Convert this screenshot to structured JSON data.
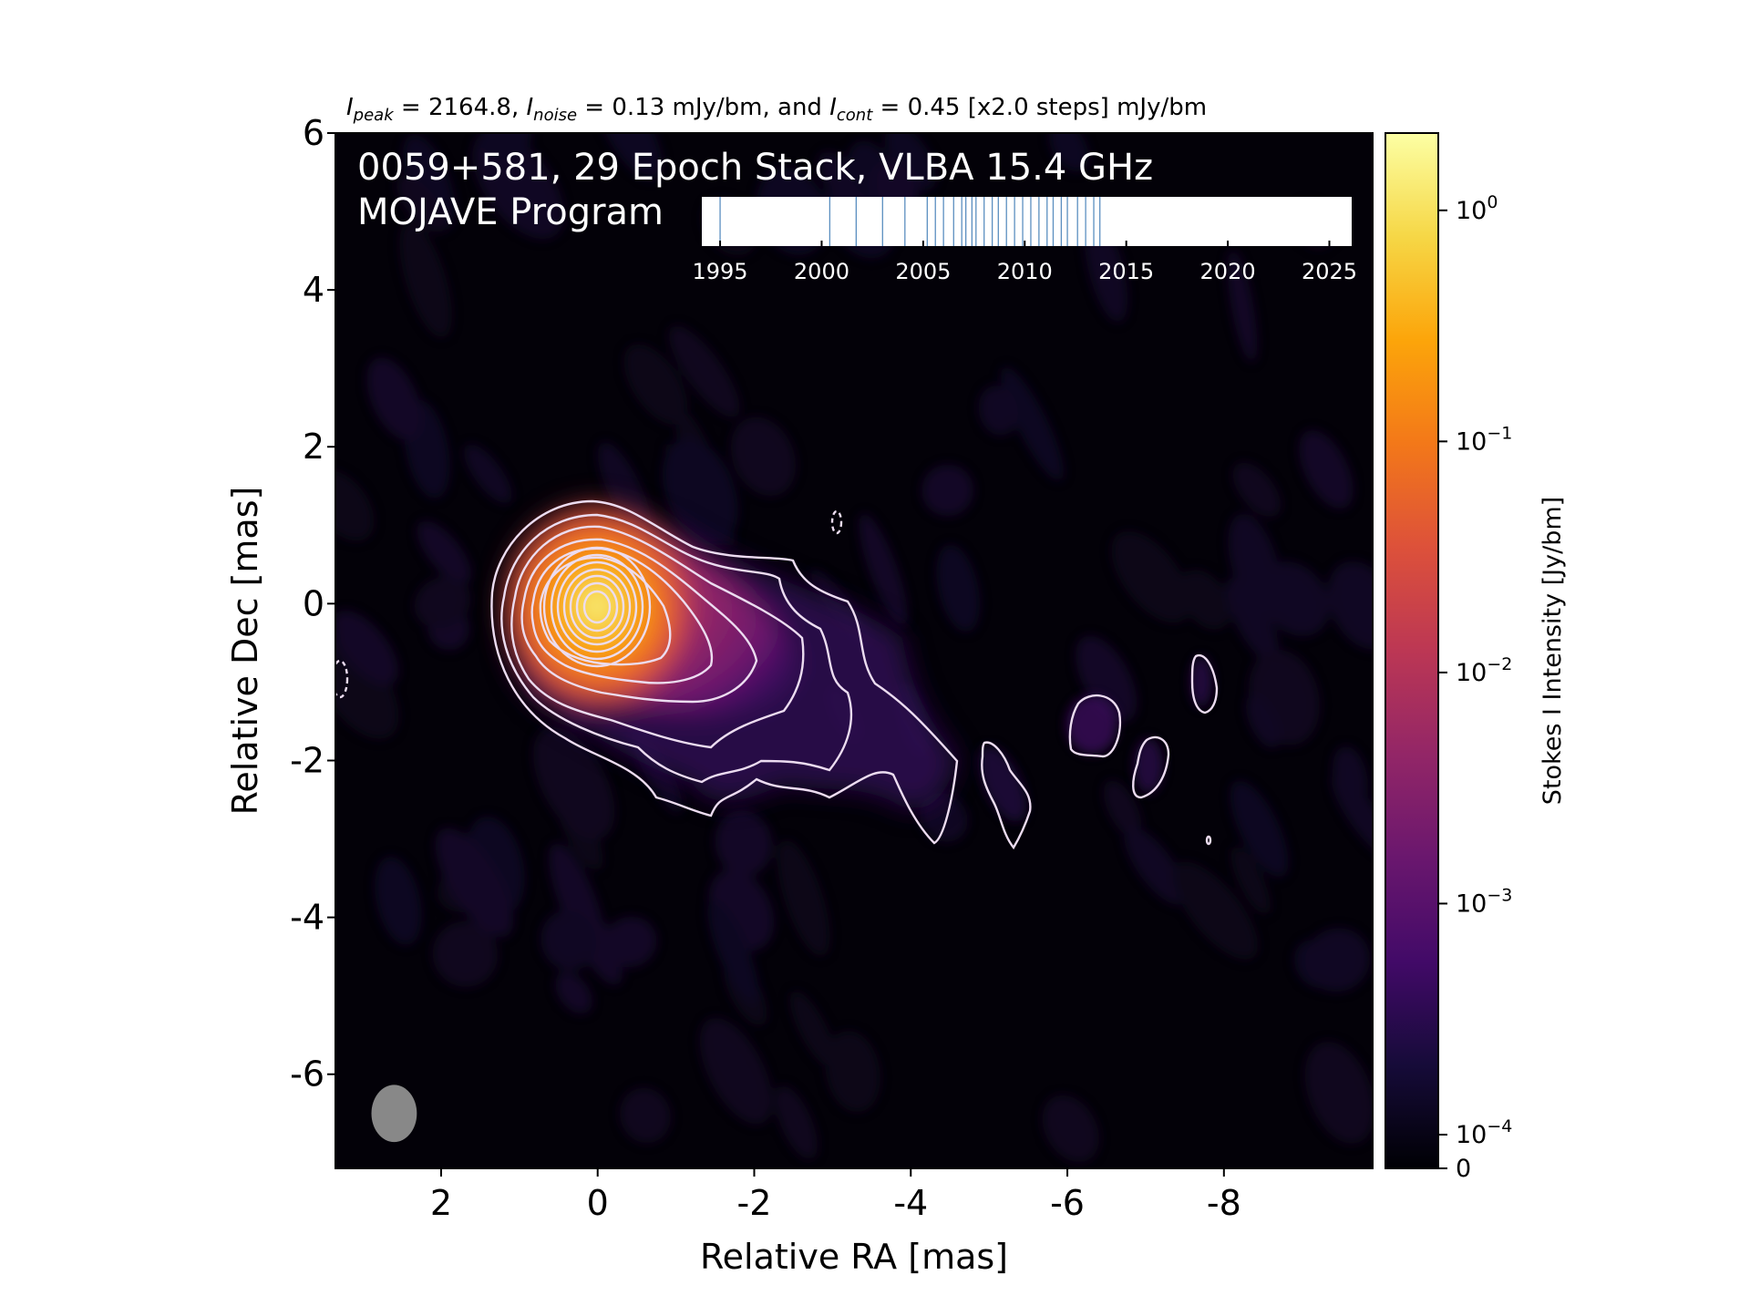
{
  "chart_data": {
    "type": "heatmap",
    "header": {
      "peak_label": "peak",
      "peak_value": "2164.8",
      "noise_label": "noise",
      "noise_value": "0.13 mJy/bm, and",
      "cont_label": "cont",
      "cont_value": "0.45 [x2.0 steps] mJy/bm"
    },
    "title_line1": "0059+581, 29 Epoch Stack, VLBA 15.4 GHz",
    "title_line2": "MOJAVE Program",
    "xlabel": "Relative RA [mas]",
    "ylabel": "Relative Dec [mas]",
    "xlim": [
      3.35,
      -9.9
    ],
    "ylim": [
      -7.2,
      6
    ],
    "xticks": [
      2,
      0,
      -2,
      -4,
      -6,
      -8
    ],
    "yticks": [
      6,
      4,
      2,
      0,
      -2,
      -4,
      -6
    ],
    "colorbar": {
      "label": "Stokes I Intensity [Jy/bm]",
      "scale": "log",
      "range": [
        0,
        2.16
      ],
      "colormap": "inferno",
      "ticks": [
        {
          "value": 1,
          "base": "10",
          "exp": "0"
        },
        {
          "value": 0.1,
          "base": "10",
          "exp": "−1"
        },
        {
          "value": 0.01,
          "base": "10",
          "exp": "−2"
        },
        {
          "value": 0.001,
          "base": "10",
          "exp": "−3"
        },
        {
          "value": 0.0001,
          "base": "10",
          "exp": "−4"
        },
        {
          "value": 0,
          "label": "0"
        }
      ]
    },
    "epoch_inset": {
      "xlim": [
        1994.1,
        2026.1
      ],
      "ticks": [
        1995,
        2000,
        2005,
        2010,
        2015,
        2020,
        2025
      ],
      "epochs": [
        1995.0,
        2000.4,
        2001.7,
        2003.0,
        2004.1,
        2005.2,
        2005.6,
        2006.0,
        2006.5,
        2006.9,
        2007.1,
        2007.4,
        2007.6,
        2008.0,
        2008.4,
        2008.7,
        2009.1,
        2009.5,
        2009.9,
        2010.3,
        2010.7,
        2011.1,
        2011.4,
        2011.8,
        2012.1,
        2012.6,
        2013.0,
        2013.4,
        2013.7
      ]
    },
    "core_position": [
      0,
      0
    ],
    "beam": {
      "ra": 2.6,
      "dec": -6.5,
      "major_mas": 0.73,
      "minor_mas": 0.58,
      "pa_deg": 0
    }
  }
}
